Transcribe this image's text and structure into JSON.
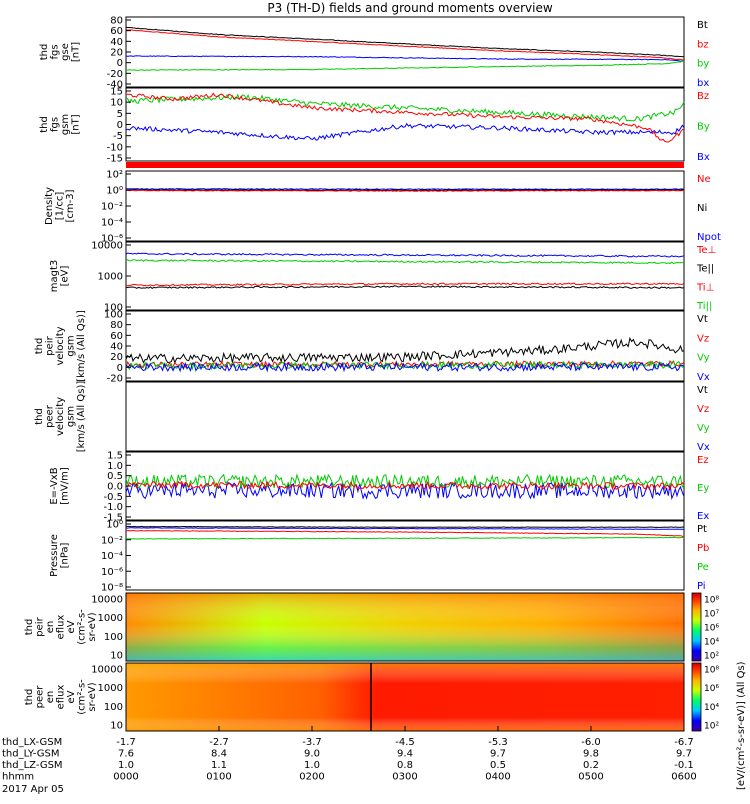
{
  "chart_data": {
    "type": "line",
    "title": "P3 (TH-D) fields and ground moments overview",
    "date_label": "2017 Apr 05",
    "x_axis": {
      "rows": [
        {
          "label": "thd_LX-GSM",
          "values": [
            "-1.7",
            "-2.7",
            "-3.7",
            "-4.5",
            "-5.3",
            "-6.0",
            "-6.7"
          ]
        },
        {
          "label": "thd_LY-GSM",
          "values": [
            "7.6",
            "8.4",
            "9.0",
            "9.4",
            "9.7",
            "9.8",
            "9.7"
          ]
        },
        {
          "label": "thd_LZ-GSM",
          "values": [
            "1.0",
            "1.1",
            "1.0",
            "0.8",
            "0.5",
            "0.2",
            "-0.1"
          ]
        },
        {
          "label": "hhmm",
          "values": [
            "0000",
            "0100",
            "0200",
            "0300",
            "0400",
            "0500",
            "0600"
          ]
        }
      ],
      "range_hours": [
        0,
        6
      ]
    },
    "panels": [
      {
        "ylabel": [
          "thd",
          "fgs",
          "gse",
          "[nT]"
        ],
        "yticks": [
          "80",
          "60",
          "40",
          "20",
          "0",
          "-20",
          "-40"
        ],
        "ylim": [
          -40,
          80
        ],
        "legend": [
          {
            "text": "Bt",
            "color": "#000000"
          },
          {
            "text": "bz",
            "color": "#ff0000"
          },
          {
            "text": "by",
            "color": "#00cc00"
          },
          {
            "text": "bx",
            "color": "#0000ff"
          }
        ],
        "series": [
          {
            "color": "#ff0000",
            "noise": 0.6,
            "points": [
              [
                0,
                58
              ],
              [
                1,
                46
              ],
              [
                2,
                38
              ],
              [
                3,
                30
              ],
              [
                4,
                22
              ],
              [
                5,
                16
              ],
              [
                5.8,
                10
              ],
              [
                6,
                6
              ]
            ]
          },
          {
            "color": "#000000",
            "noise": 0.6,
            "points": [
              [
                0,
                62
              ],
              [
                1,
                50
              ],
              [
                2,
                42
              ],
              [
                3,
                34
              ],
              [
                4,
                26
              ],
              [
                5,
                20
              ],
              [
                5.8,
                14
              ],
              [
                6,
                12
              ]
            ]
          },
          {
            "color": "#0000ff",
            "noise": 0.6,
            "points": [
              [
                0,
                13
              ],
              [
                2,
                12
              ],
              [
                4,
                8
              ],
              [
                5.8,
                7
              ],
              [
                6,
                4
              ]
            ]
          },
          {
            "color": "#00cc00",
            "noise": 0.6,
            "points": [
              [
                0,
                -11
              ],
              [
                2,
                -10
              ],
              [
                4,
                -5
              ],
              [
                5,
                -3
              ],
              [
                5.8,
                0
              ],
              [
                6,
                4
              ]
            ]
          }
        ]
      },
      {
        "ylabel": [
          "thd",
          "fgs",
          "gsm",
          "[nT]"
        ],
        "yticks": [
          "15",
          "10",
          "5",
          "0",
          "-5",
          "-10",
          "-15"
        ],
        "ylim": [
          -18,
          15
        ],
        "legend": [
          {
            "text": "Bz",
            "color": "#ff0000"
          },
          {
            "text": "By",
            "color": "#00cc00"
          },
          {
            "text": "Bx",
            "color": "#0000ff"
          }
        ],
        "series": [
          {
            "color": "#00cc00",
            "noise": 1.2,
            "points": [
              [
                0,
                9
              ],
              [
                0.6,
                10
              ],
              [
                1.3,
                11
              ],
              [
                2,
                8
              ],
              [
                3,
                6
              ],
              [
                4,
                4
              ],
              [
                5,
                2
              ],
              [
                5.5,
                1
              ],
              [
                5.9,
                4
              ],
              [
                6,
                8
              ]
            ]
          },
          {
            "color": "#ff0000",
            "noise": 0.9,
            "points": [
              [
                0,
                12
              ],
              [
                0.5,
                10
              ],
              [
                1,
                12
              ],
              [
                1.5,
                9
              ],
              [
                2,
                6
              ],
              [
                2.5,
                5
              ],
              [
                3,
                4
              ],
              [
                4,
                2
              ],
              [
                5,
                1
              ],
              [
                5.6,
                -3
              ],
              [
                5.8,
                -10
              ],
              [
                6,
                -4
              ]
            ]
          },
          {
            "color": "#0000ff",
            "noise": 1.0,
            "points": [
              [
                0,
                -3
              ],
              [
                1,
                -5
              ],
              [
                2,
                -8
              ],
              [
                2.5,
                -5
              ],
              [
                3,
                -2
              ],
              [
                4,
                -3
              ],
              [
                5,
                -5
              ],
              [
                5.9,
                -5
              ],
              [
                6,
                -2
              ]
            ]
          }
        ]
      },
      {
        "ylabel": [
          "Density",
          "[1/cc]",
          "[cm-3]"
        ],
        "yticks": [
          "10²",
          "10⁰",
          "10⁻²",
          "10⁻⁴",
          "10⁻⁶"
        ],
        "ylim": [
          -7,
          3
        ],
        "legend": [
          {
            "text": "Ne",
            "color": "#ff0000"
          },
          {
            "text": "Ni",
            "color": "#000000"
          },
          {
            "text": "Npot",
            "color": "#0000ff"
          }
        ],
        "series": [
          {
            "color": "#0000ff",
            "noise": 0.05,
            "points": [
              [
                0,
                0.45
              ],
              [
                3,
                0.4
              ],
              [
                6,
                0.4
              ]
            ]
          },
          {
            "color": "#000000",
            "noise": 0.05,
            "points": [
              [
                0,
                0.3
              ],
              [
                3,
                0.25
              ],
              [
                6,
                0.3
              ]
            ]
          },
          {
            "color": "#ff0000",
            "noise": 0.05,
            "points": [
              [
                0,
                0.2
              ],
              [
                3,
                0.15
              ],
              [
                6,
                0.2
              ]
            ]
          }
        ]
      },
      {
        "ylabel": [
          "magt3",
          "[eV]"
        ],
        "yticks": [
          "10000",
          "1000",
          "100"
        ],
        "ylim": [
          1.6,
          4.2
        ],
        "legend": [
          {
            "text": "Te⊥",
            "color": "#ff0000"
          },
          {
            "text": "Te||",
            "color": "#000000"
          },
          {
            "text": "Ti⊥",
            "color": "#ff0000"
          },
          {
            "text": "Ti||",
            "color": "#00cc00"
          }
        ],
        "series": [
          {
            "color": "#0000ff",
            "noise": 0.03,
            "points": [
              [
                0,
                3.75
              ],
              [
                3,
                3.7
              ],
              [
                6,
                3.65
              ]
            ]
          },
          {
            "color": "#00cc00",
            "noise": 0.03,
            "points": [
              [
                0,
                3.5
              ],
              [
                3,
                3.45
              ],
              [
                6,
                3.4
              ]
            ]
          },
          {
            "color": "#ff0000",
            "noise": 0.03,
            "points": [
              [
                0,
                2.55
              ],
              [
                3,
                2.6
              ],
              [
                6,
                2.6
              ]
            ]
          },
          {
            "color": "#000000",
            "noise": 0.03,
            "points": [
              [
                0,
                2.45
              ],
              [
                3,
                2.5
              ],
              [
                6,
                2.45
              ]
            ]
          }
        ]
      },
      {
        "ylabel": [
          "thd",
          "peir",
          "velocity",
          "gsm",
          "[km/s (All Qs)]"
        ],
        "yticks": [
          "100",
          "80",
          "60",
          "40",
          "20",
          "0",
          "-20"
        ],
        "ylim": [
          -25,
          100
        ],
        "legend": [
          {
            "text": "Vt",
            "color": "#000000"
          },
          {
            "text": "Vz",
            "color": "#ff0000"
          },
          {
            "text": "Vy",
            "color": "#00cc00"
          },
          {
            "text": "Vx",
            "color": "#0000ff"
          }
        ],
        "series": [
          {
            "color": "#000000",
            "noise": 8,
            "points": [
              [
                0,
                15
              ],
              [
                3,
                18
              ],
              [
                4.5,
                30
              ],
              [
                5.5,
                45
              ],
              [
                6,
                30
              ]
            ]
          },
          {
            "color": "#ff0000",
            "noise": 5,
            "points": [
              [
                0,
                4
              ],
              [
                6,
                6
              ]
            ]
          },
          {
            "color": "#00cc00",
            "noise": 6,
            "points": [
              [
                0,
                2
              ],
              [
                6,
                4
              ]
            ]
          },
          {
            "color": "#0000ff",
            "noise": 7,
            "points": [
              [
                0,
                0
              ],
              [
                6,
                0
              ]
            ]
          }
        ]
      },
      {
        "ylabel": [
          "thd",
          "peer",
          "velocity",
          "gsm",
          "[km/s (All Qs)]"
        ],
        "yticks": [],
        "ylim": [
          0,
          1
        ],
        "legend": [
          {
            "text": "Vt",
            "color": "#000000"
          },
          {
            "text": "Vz",
            "color": "#ff0000"
          },
          {
            "text": "Vy",
            "color": "#00cc00"
          },
          {
            "text": "Vx",
            "color": "#0000ff"
          }
        ],
        "series": []
      },
      {
        "ylabel": [
          "E=-VxB",
          "[mV/m]"
        ],
        "yticks": [
          "1.5",
          "1.0",
          "0.5",
          "0.0",
          "-0.5",
          "-1.0",
          "-1.5"
        ],
        "ylim": [
          -1.5,
          1.5
        ],
        "legend": [
          {
            "text": "Ez",
            "color": "#ff0000"
          },
          {
            "text": "Ey",
            "color": "#00cc00"
          },
          {
            "text": "Ex",
            "color": "#0000ff"
          }
        ],
        "series": [
          {
            "color": "#0000ff",
            "noise": 0.35,
            "points": [
              [
                0,
                -0.2
              ],
              [
                6,
                -0.2
              ]
            ]
          },
          {
            "color": "#00cc00",
            "noise": 0.3,
            "points": [
              [
                0,
                0.2
              ],
              [
                6,
                0.2
              ]
            ]
          },
          {
            "color": "#ff0000",
            "noise": 0.15,
            "points": [
              [
                0,
                0.05
              ],
              [
                6,
                0.0
              ]
            ]
          }
        ]
      },
      {
        "ylabel": [
          "Pressure",
          "[nPa]"
        ],
        "yticks": [
          "10⁰",
          "10⁻²",
          "10⁻⁴",
          "10⁻⁶",
          "10⁻⁸"
        ],
        "ylim": [
          -9,
          1
        ],
        "legend": [
          {
            "text": "Pt",
            "color": "#000000"
          },
          {
            "text": "Pb",
            "color": "#ff0000"
          },
          {
            "text": "Pe",
            "color": "#00cc00"
          },
          {
            "text": "Pi",
            "color": "#0000ff"
          }
        ],
        "series": [
          {
            "color": "#000000",
            "noise": 0.03,
            "points": [
              [
                0,
                0.2
              ],
              [
                3,
                0.1
              ],
              [
                6,
                0.1
              ]
            ]
          },
          {
            "color": "#0000ff",
            "noise": 0.03,
            "points": [
              [
                0,
                0.0
              ],
              [
                6,
                -0.2
              ]
            ]
          },
          {
            "color": "#ff0000",
            "noise": 0.04,
            "points": [
              [
                0,
                -0.4
              ],
              [
                3,
                -0.6
              ],
              [
                5.5,
                -0.9
              ],
              [
                6,
                -1.2
              ]
            ]
          },
          {
            "color": "#00cc00",
            "noise": 0.04,
            "points": [
              [
                0,
                -1.6
              ],
              [
                3,
                -1.5
              ],
              [
                6,
                -1.4
              ]
            ]
          }
        ]
      }
    ],
    "spectrograms": [
      {
        "ylabel": [
          "thd",
          "peir",
          "en",
          "eflux",
          "eV",
          "(cm²-s-",
          "sr-eV)"
        ],
        "yticks": [
          "10000",
          "1000",
          "100",
          "10"
        ]
      },
      {
        "ylabel": [
          "thd",
          "peer",
          "en",
          "eflux",
          "eV",
          "(cm²-s-",
          "sr-eV)"
        ],
        "yticks": [
          "10000",
          "1000",
          "100",
          "10"
        ]
      }
    ],
    "colorbars": [
      {
        "tick_labels": [
          "10⁸",
          "10⁷",
          "10⁶",
          "10⁴",
          "10²"
        ]
      },
      {
        "tick_labels": [
          "10⁸",
          "10⁶",
          "10⁴",
          "10²"
        ]
      }
    ],
    "colorbar_title": "[eV/(cm²-s-sr-eV)] (All Qs)"
  }
}
